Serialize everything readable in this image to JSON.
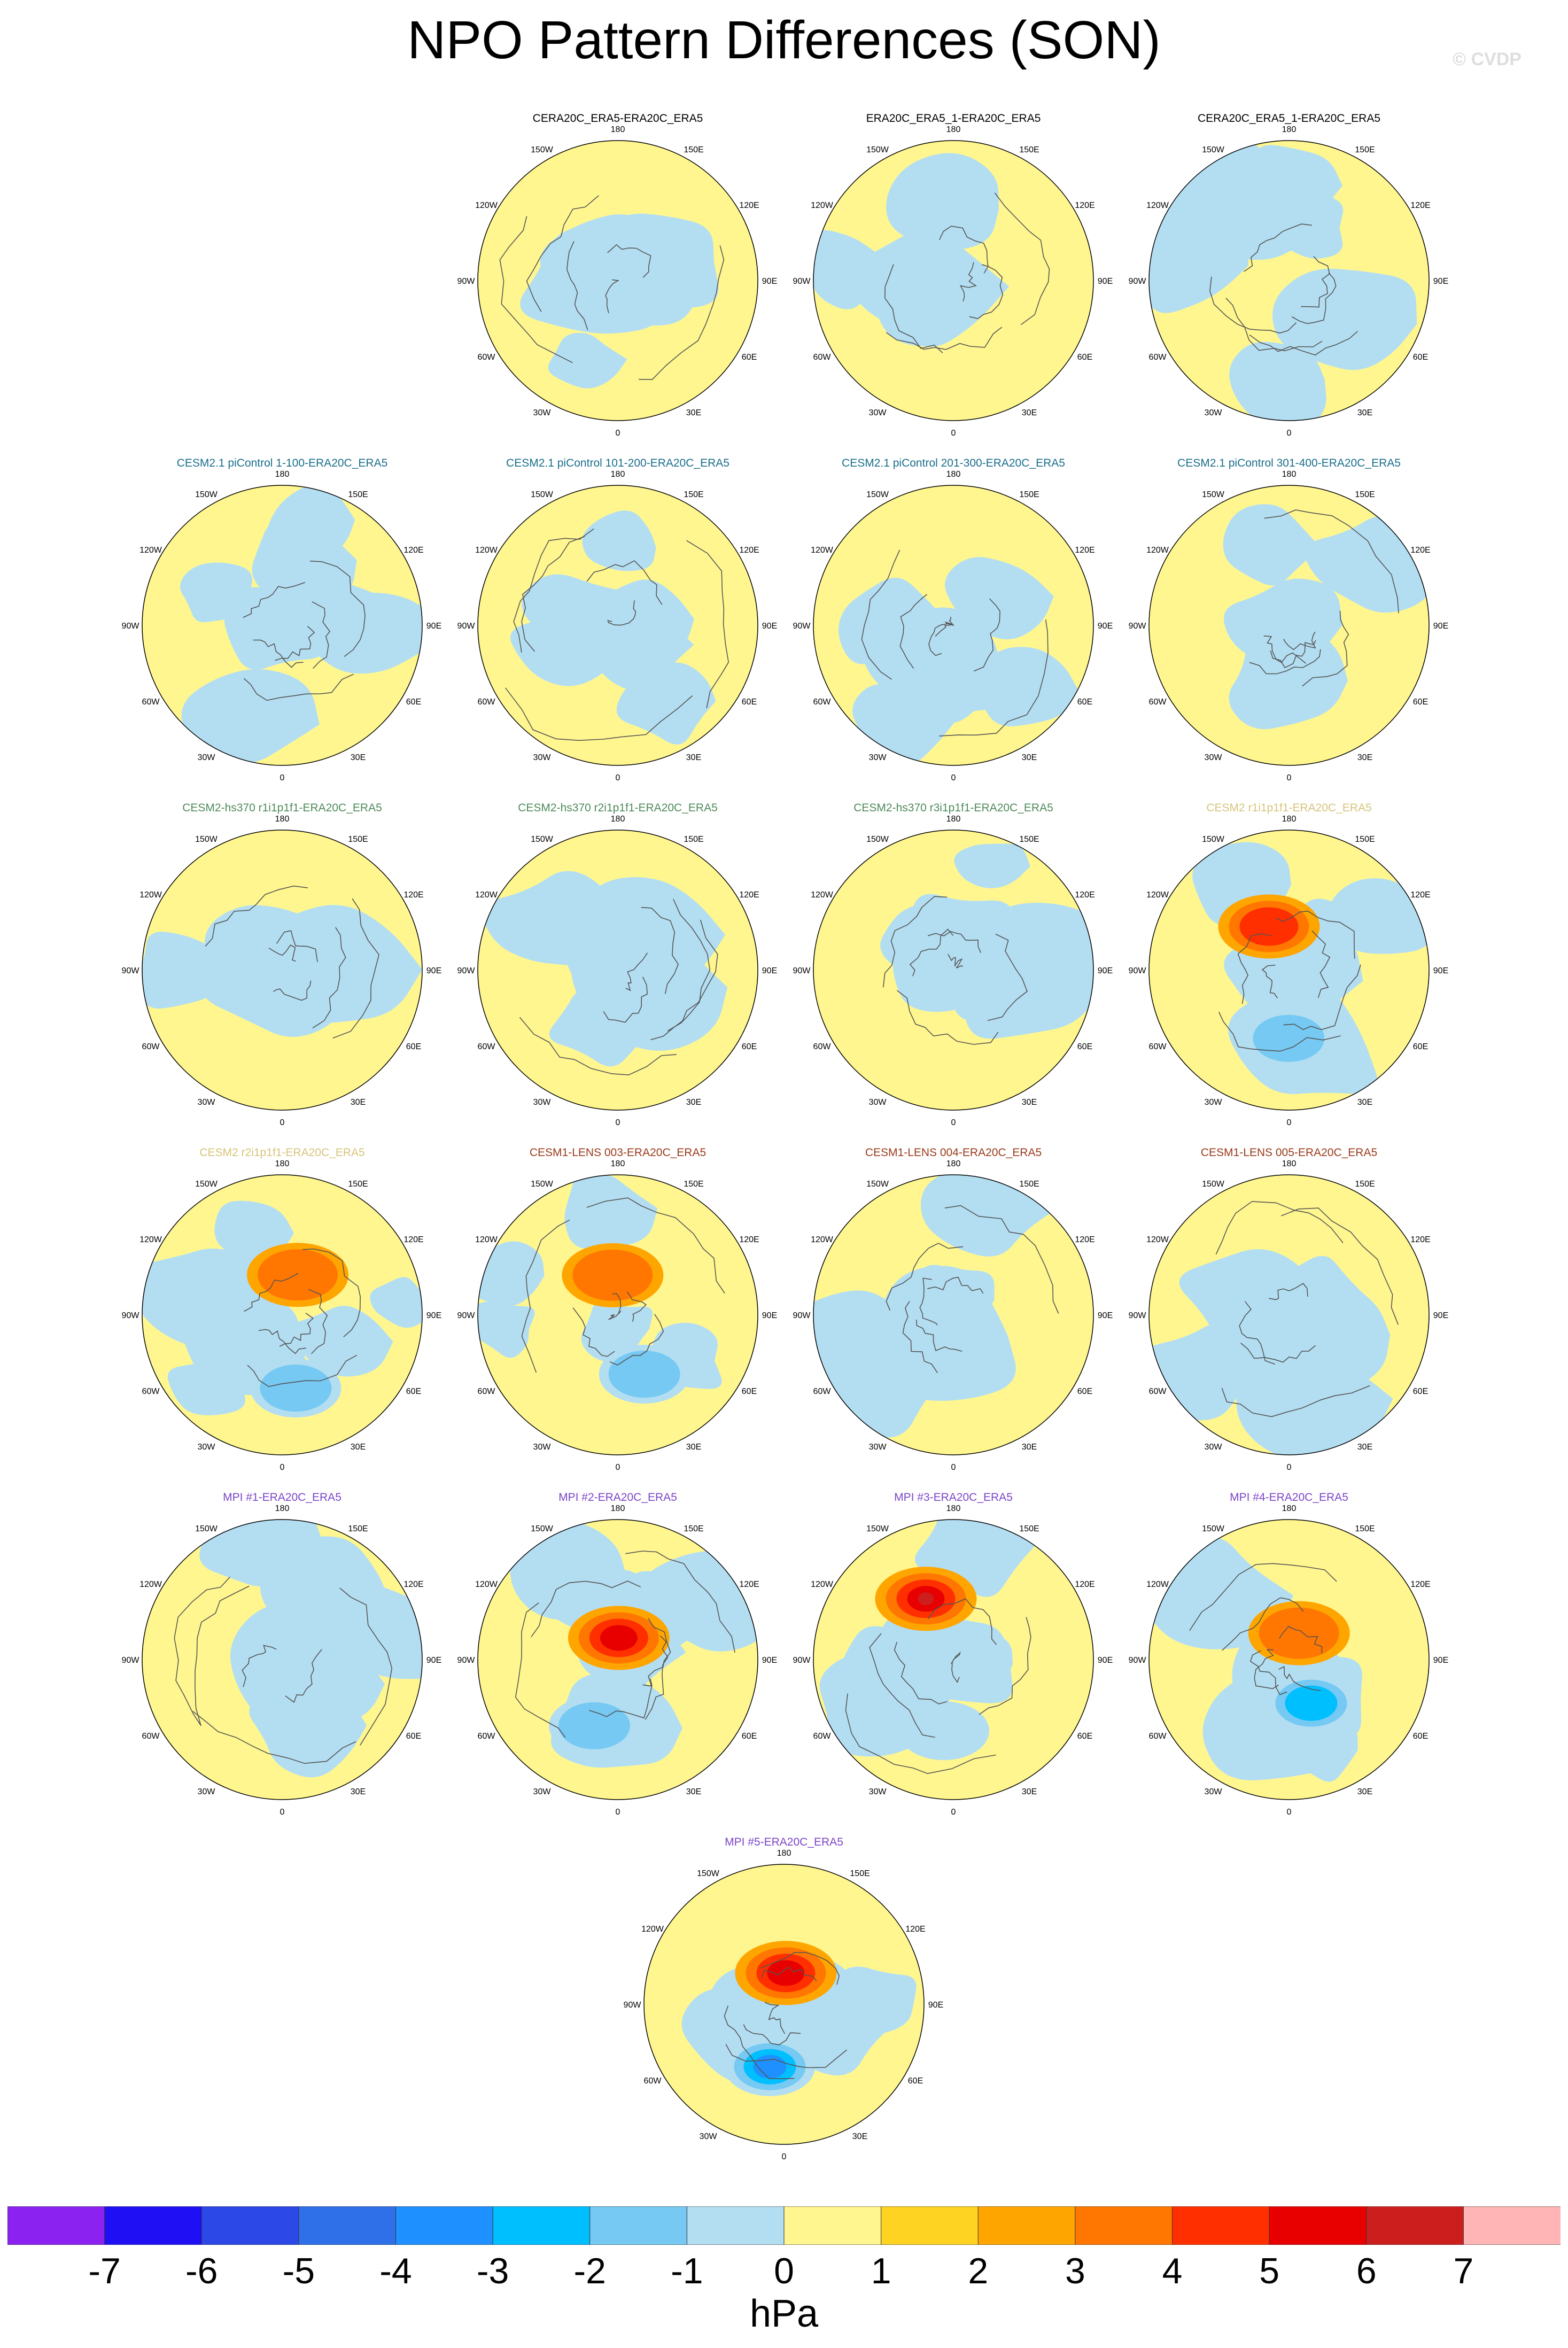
{
  "title": "NPO Pattern Differences (SON)",
  "watermark": "© CVDP",
  "units": "hPa",
  "colorbar": {
    "levels": [
      "-7",
      "-6",
      "-5",
      "-4",
      "-3",
      "-2",
      "-1",
      "0",
      "1",
      "2",
      "3",
      "4",
      "5",
      "6",
      "7"
    ],
    "colors": [
      "#8b22f0",
      "#1e0ff5",
      "#2c48e6",
      "#2f6fe8",
      "#1e90ff",
      "#00bfff",
      "#75c9f2",
      "#b3def2",
      "#fff68f",
      "#ffd321",
      "#ffa500",
      "#ff7700",
      "#ff2f00",
      "#e80000",
      "#cd1e1e",
      "#ffb5b5"
    ]
  },
  "lon_labels": [
    "180",
    "150E",
    "120E",
    "90E",
    "60E",
    "30E",
    "0",
    "30W",
    "60W",
    "90W",
    "120W",
    "150W"
  ],
  "panels": [
    {
      "title": "CERA20C_ERA5-ERA20C_ERA5",
      "color": "#000000",
      "extrema": []
    },
    {
      "title": "ERA20C_ERA5_1-ERA20C_ERA5",
      "color": "#000000",
      "extrema": []
    },
    {
      "title": "CERA20C_ERA5_1-ERA20C_ERA5",
      "color": "#000000",
      "extrema": []
    },
    {
      "title": "CESM2.1 piControl 1-100-ERA20C_ERA5",
      "color": "#1a6e8c",
      "extrema": []
    },
    {
      "title": "CESM2.1 piControl 101-200-ERA20C_ERA5",
      "color": "#1a6e8c",
      "extrema": []
    },
    {
      "title": "CESM2.1 piControl 201-300-ERA20C_ERA5",
      "color": "#1a6e8c",
      "extrema": []
    },
    {
      "title": "CESM2.1 piControl 301-400-ERA20C_ERA5",
      "color": "#1a6e8c",
      "extrema": []
    },
    {
      "title": "CESM2-hs370 r1i1p1f1-ERA20C_ERA5",
      "color": "#4e8a5a",
      "extrema": []
    },
    {
      "title": "CESM2-hs370 r2i1p1f1-ERA20C_ERA5",
      "color": "#4e8a5a",
      "extrema": []
    },
    {
      "title": "CESM2-hs370 r3i1p1f1-ERA20C_ERA5",
      "color": "#4e8a5a",
      "extrema": []
    },
    {
      "title": "CESM2 r1i1p1f1-ERA20C_ERA5",
      "color": "#d6c47a",
      "extrema": [
        3,
        -2
      ]
    },
    {
      "title": "CESM2 r2i1p1f1-ERA20C_ERA5",
      "color": "#d6c47a",
      "extrema": [
        2,
        -2
      ]
    },
    {
      "title": "CESM1-LENS 003-ERA20C_ERA5",
      "color": "#9a3a1a",
      "extrema": [
        2,
        -2
      ]
    },
    {
      "title": "CESM1-LENS 004-ERA20C_ERA5",
      "color": "#9a3a1a",
      "extrema": []
    },
    {
      "title": "CESM1-LENS 005-ERA20C_ERA5",
      "color": "#9a3a1a",
      "extrema": []
    },
    {
      "title": "MPI #1-ERA20C_ERA5",
      "color": "#7b45c9",
      "extrema": []
    },
    {
      "title": "MPI #2-ERA20C_ERA5",
      "color": "#7b45c9",
      "extrema": [
        4,
        -2
      ]
    },
    {
      "title": "MPI #3-ERA20C_ERA5",
      "color": "#7b45c9",
      "extrema": [
        5,
        -1
      ]
    },
    {
      "title": "MPI #4-ERA20C_ERA5",
      "color": "#7b45c9",
      "extrema": [
        2,
        -3
      ]
    },
    {
      "title": "MPI #5-ERA20C_ERA5",
      "color": "#7b45c9",
      "extrema": [
        4,
        -4
      ]
    }
  ]
}
